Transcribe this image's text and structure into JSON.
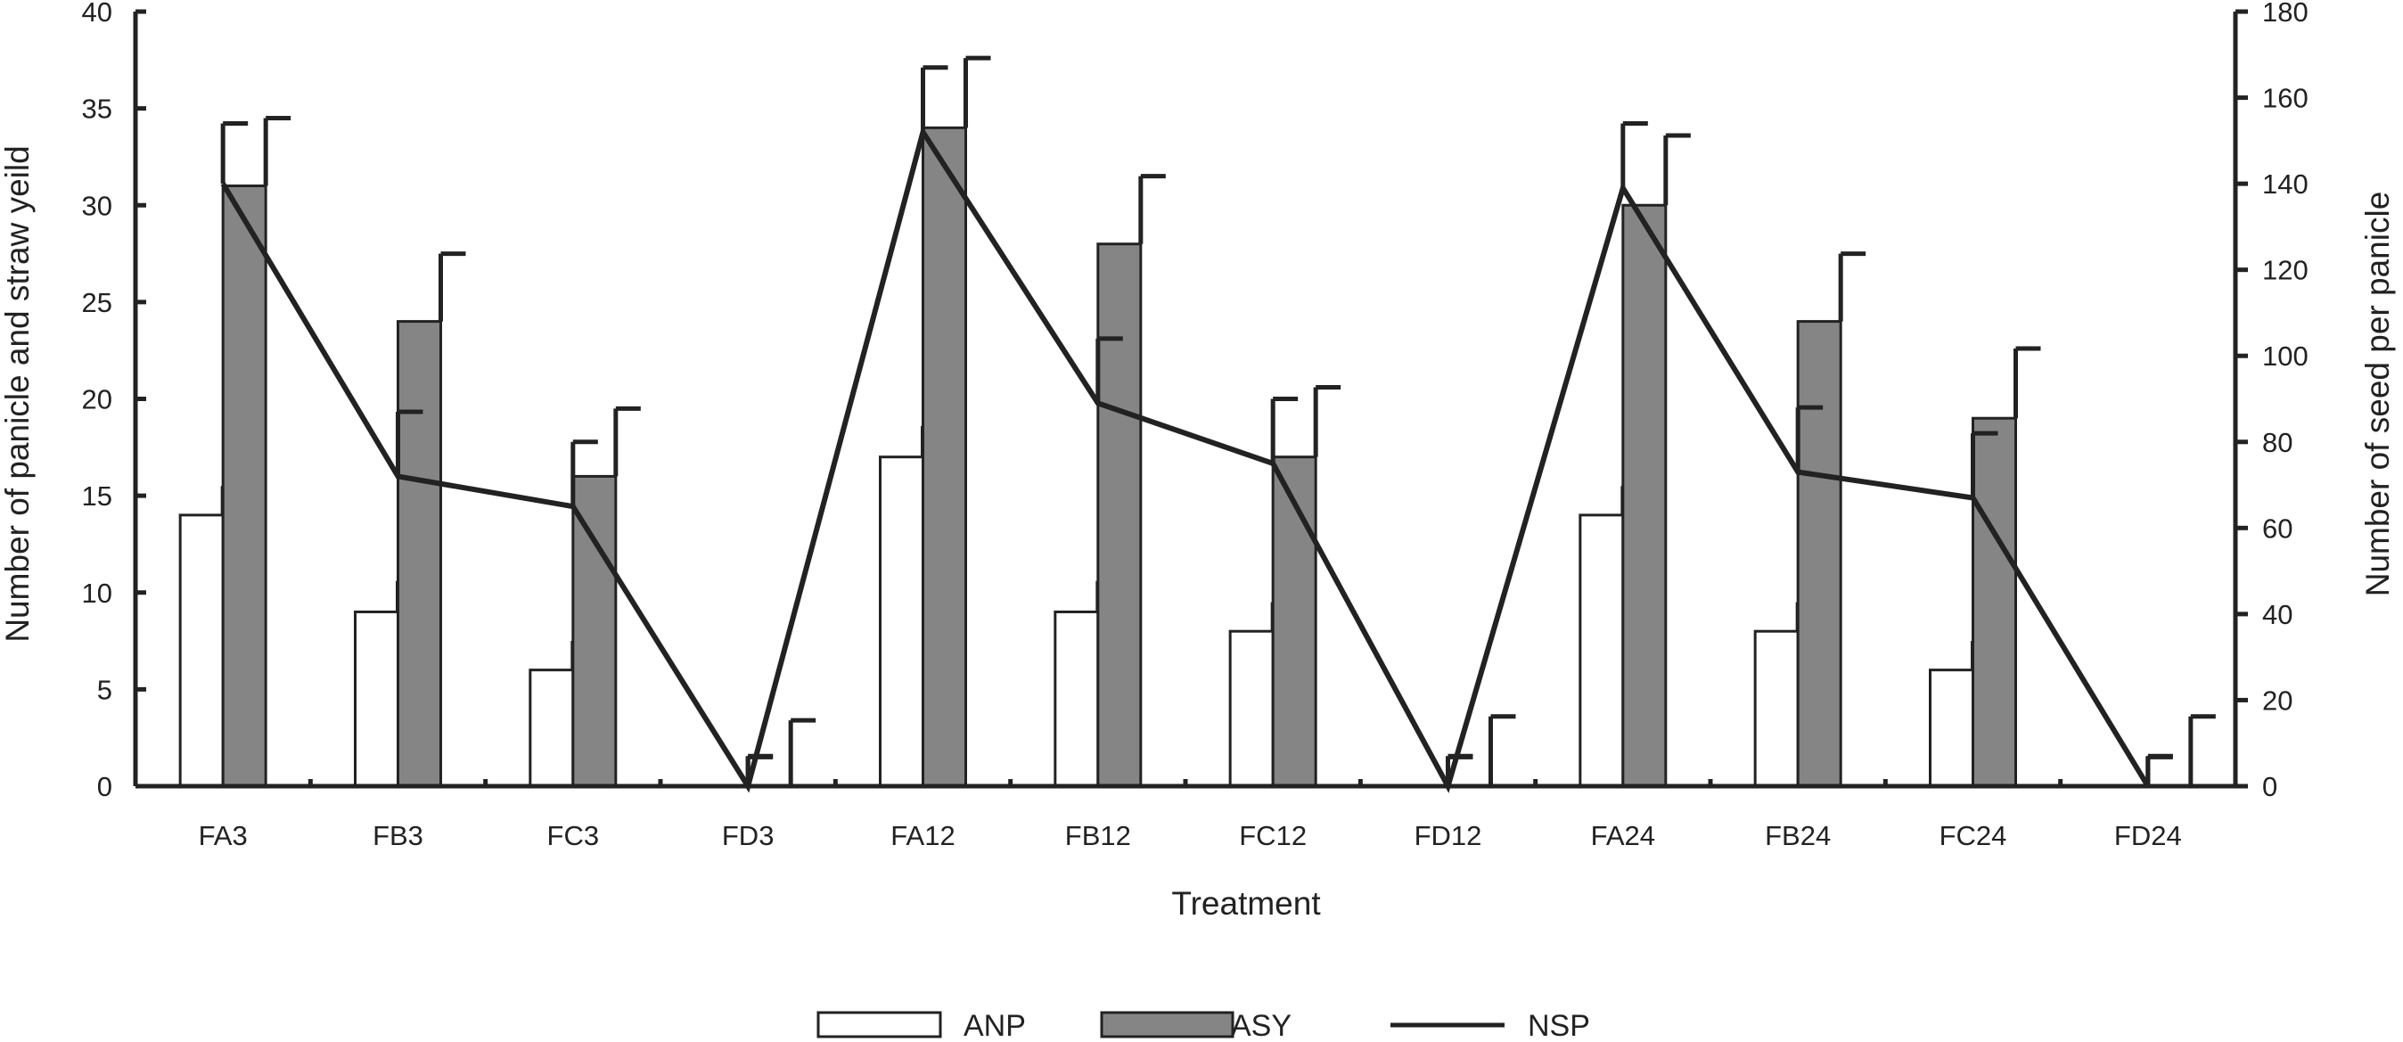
{
  "chart_data": {
    "type": "bar",
    "categories": [
      "FA3",
      "FB3",
      "FC3",
      "FD3",
      "FA12",
      "FB12",
      "FC12",
      "FD12",
      "FA24",
      "FB24",
      "FC24",
      "FD24"
    ],
    "xlabel": "Treatment",
    "ylabel_left": "Number of panicle and straw yeild",
    "ylabel_right": "Number of seed per panicle",
    "ylim_left": [
      0,
      40
    ],
    "ylim_right": [
      0,
      180
    ],
    "yticks_left": [
      "0",
      "5",
      "10",
      "15",
      "20",
      "25",
      "30",
      "35",
      "40"
    ],
    "yticks_right": [
      "0",
      "20",
      "40",
      "60",
      "80",
      "100",
      "120",
      "140",
      "160",
      "180"
    ],
    "grid": false,
    "legend_position": "bottom-center",
    "series": [
      {
        "name": "ANP",
        "kind": "bar",
        "axis": "left",
        "color": "#ffffff",
        "values": [
          14,
          9,
          6,
          0,
          17,
          9,
          8,
          0,
          14,
          8,
          6,
          0
        ],
        "errors": [
          1.5,
          1.6,
          1.5,
          1.5,
          1.6,
          1.6,
          1.5,
          1.5,
          1.5,
          1.5,
          1.5,
          1.5
        ]
      },
      {
        "name": "ASY",
        "kind": "bar",
        "axis": "left",
        "color": "#858585",
        "values": [
          31,
          24,
          16,
          0,
          34,
          28,
          17,
          0,
          30,
          24,
          19,
          0
        ],
        "errors": [
          3.5,
          3.5,
          3.5,
          3.4,
          3.6,
          3.5,
          3.6,
          3.6,
          3.6,
          3.5,
          3.6,
          3.6
        ]
      },
      {
        "name": "NSP",
        "kind": "line",
        "axis": "right",
        "color": "#222222",
        "values": [
          140,
          72,
          65,
          0,
          152,
          89,
          75,
          0,
          139,
          73,
          67,
          0
        ],
        "errors": [
          14,
          15,
          15,
          7,
          15,
          15,
          15,
          7,
          15,
          15,
          15,
          7
        ]
      }
    ]
  }
}
